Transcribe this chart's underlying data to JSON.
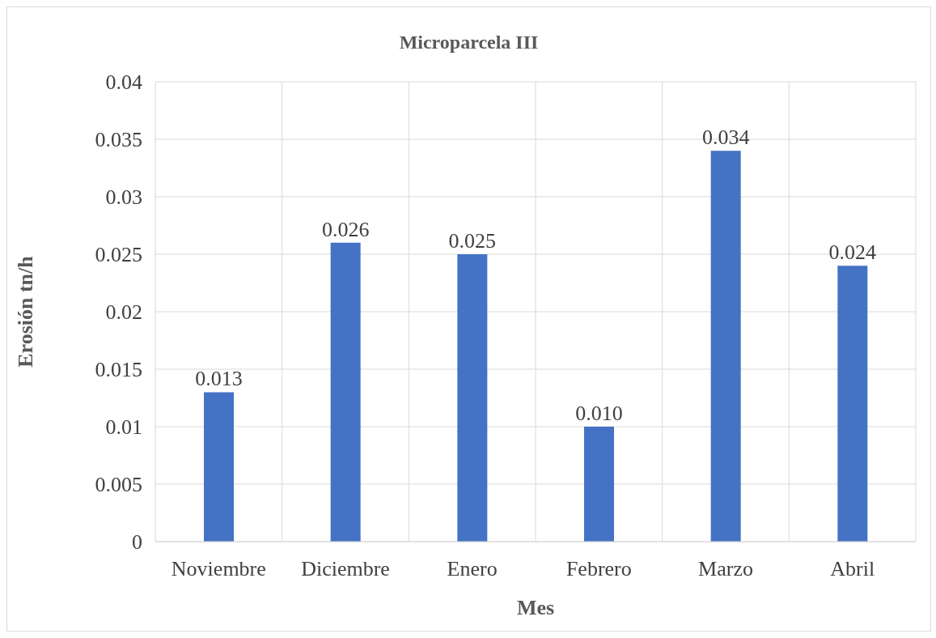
{
  "chart_data": {
    "type": "bar",
    "title": "Microparcela III",
    "xlabel": "Mes",
    "ylabel": "Erosión tn/h",
    "categories": [
      "Noviembre",
      "Diciembre",
      "Enero",
      "Febrero",
      "Marzo",
      "Abril"
    ],
    "values": [
      0.013,
      0.026,
      0.025,
      0.01,
      0.034,
      0.024
    ],
    "value_labels": [
      "0.013",
      "0.026",
      "0.025",
      "0.010",
      "0.034",
      "0.024"
    ],
    "color": "#4472c4",
    "ylim": [
      0,
      0.04
    ],
    "yticks": [
      0,
      0.005,
      0.01,
      0.015,
      0.02,
      0.025,
      0.03,
      0.035,
      0.04
    ],
    "grid": true
  }
}
